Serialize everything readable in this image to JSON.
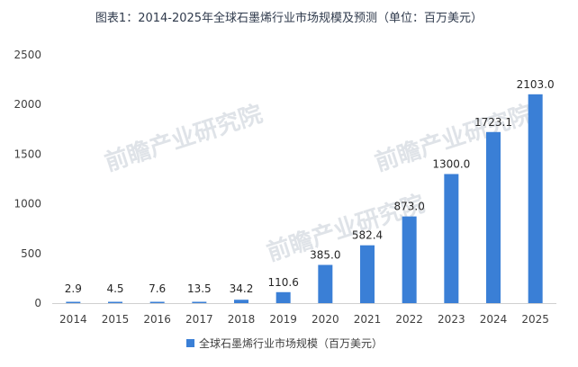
{
  "page": {
    "title": "图表1：2014-2025年全球石墨烯行业市场规模及预测（单位：百万美元）",
    "accent_color": "#3a7fd6",
    "watermark": "前瞻产业研究院"
  },
  "chart_data": {
    "type": "bar",
    "title": "图表1：2014-2025年全球石墨烯行业市场规模及预测（单位：百万美元）",
    "categories": [
      "2014",
      "2015",
      "2016",
      "2017",
      "2018",
      "2019",
      "2020",
      "2021",
      "2022",
      "2023",
      "2024",
      "2025"
    ],
    "series": [
      {
        "name": "全球石墨烯行业市场规模（百万美元）",
        "values": [
          2.9,
          4.5,
          7.6,
          13.5,
          34.2,
          110.6,
          385.0,
          582.4,
          873.0,
          1300.0,
          1723.1,
          2103.0
        ],
        "labels": [
          "2.9",
          "4.5",
          "7.6",
          "13.5",
          "34.2",
          "110.6",
          "385.0",
          "582.4",
          "873.0",
          "1300.0",
          "1723.1",
          "2103.0"
        ],
        "color": "#3a7fd6"
      }
    ],
    "ylim": [
      0,
      2500
    ],
    "yticks": [
      0,
      500,
      1000,
      1500,
      2000,
      2500
    ],
    "xlabel": "",
    "ylabel": "",
    "grid": false,
    "legend_position": "bottom"
  }
}
